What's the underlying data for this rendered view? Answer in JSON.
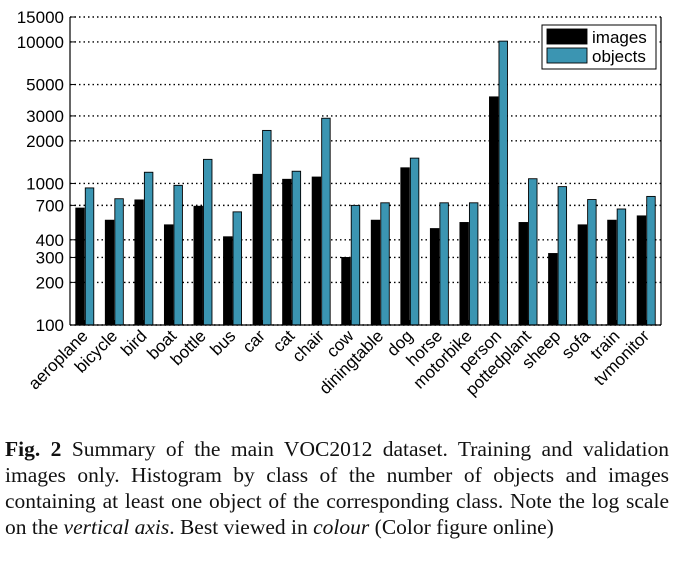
{
  "chart_data": {
    "type": "bar",
    "title": "",
    "xlabel": "",
    "ylabel": "",
    "yscale": "log",
    "ylim": [
      100,
      15000
    ],
    "yticks": [
      100,
      200,
      300,
      400,
      700,
      1000,
      2000,
      3000,
      5000,
      10000,
      15000
    ],
    "ytick_labels": [
      "100",
      "200",
      "300",
      "400",
      "700",
      "1000",
      "2000",
      "3000",
      "5000",
      "10000",
      "15000"
    ],
    "grid": "horizontal dotted",
    "legend_position": "top-right",
    "categories": [
      "aeroplane",
      "bicycle",
      "bird",
      "boat",
      "bottle",
      "bus",
      "car",
      "cat",
      "chair",
      "cow",
      "diningtable",
      "dog",
      "horse",
      "motorbike",
      "person",
      "pottedplant",
      "sheep",
      "sofa",
      "train",
      "tvmonitor"
    ],
    "series": [
      {
        "name": "images",
        "color": "#000000",
        "values": [
          670,
          550,
          765,
          510,
          690,
          420,
          1160,
          1070,
          1110,
          300,
          550,
          1290,
          480,
          530,
          4090,
          530,
          320,
          510,
          550,
          590
        ]
      },
      {
        "name": "objects",
        "color": "#3b95b2",
        "values": [
          930,
          780,
          1200,
          970,
          1480,
          630,
          2370,
          1220,
          2890,
          700,
          730,
          1510,
          730,
          730,
          10130,
          1080,
          950,
          770,
          660,
          810
        ]
      }
    ]
  },
  "caption": {
    "label": "Fig. 2",
    "text_1": "  Summary of the main VOC2012 dataset. Training and validation images only. Histogram by class of the number of objects and images containing at least one object of the corresponding class. Note the log scale on the ",
    "em_1": "vertical axis",
    "text_2": ". Best viewed in ",
    "em_2": "colour",
    "text_3": " (Color figure online)"
  }
}
